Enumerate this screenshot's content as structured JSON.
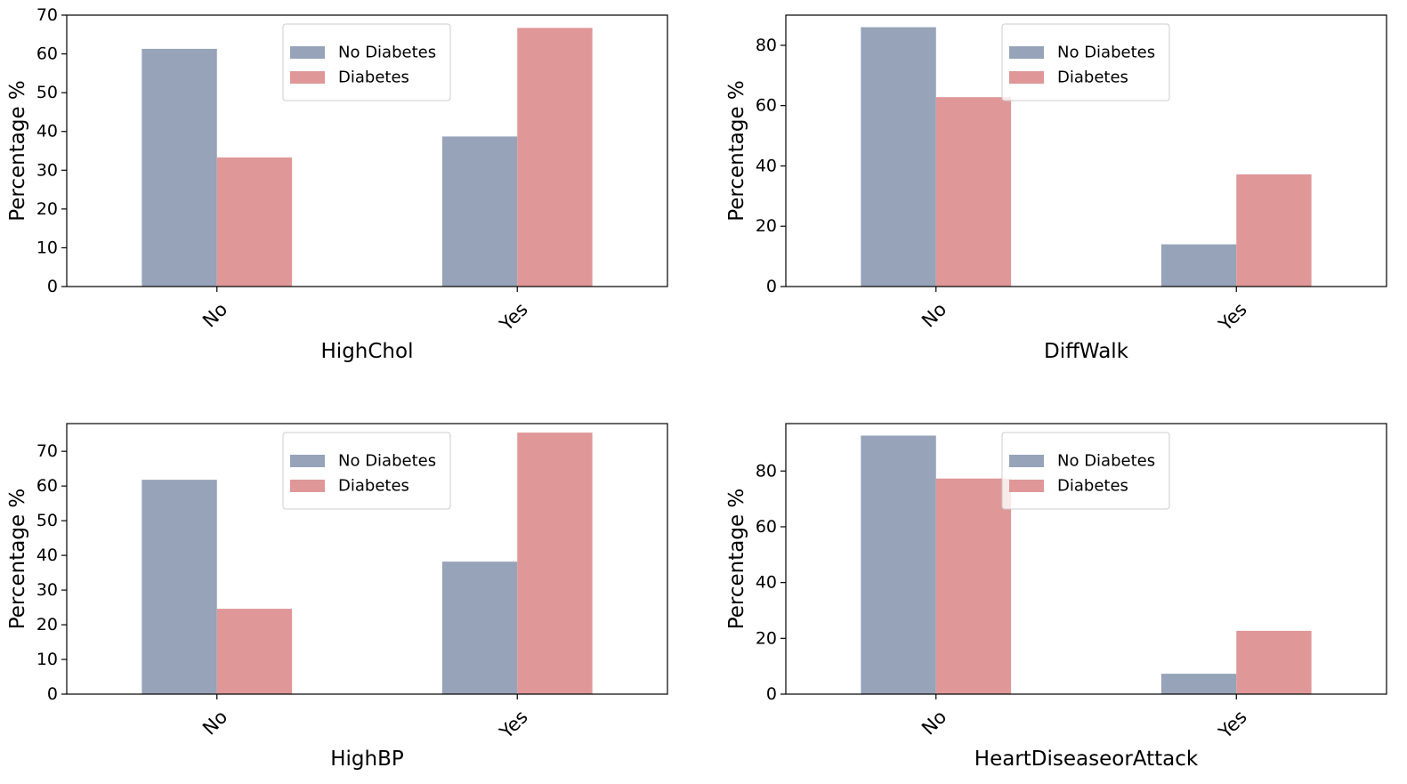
{
  "legend": {
    "position": "upper center",
    "entries": [
      {
        "name": "No Diabetes",
        "color": "#96a3b8"
      },
      {
        "name": "Diabetes",
        "color": "#df9798"
      }
    ]
  },
  "chart_data": [
    {
      "type": "bar",
      "categories": [
        "No",
        "Yes"
      ],
      "xlabel": "HighChol",
      "ylabel": "Percentage %",
      "ylim": [
        0,
        70
      ],
      "yticks": [
        0,
        10,
        20,
        30,
        40,
        50,
        60,
        70
      ],
      "grid": false,
      "series": [
        {
          "name": "No Diabetes",
          "values": [
            61.3,
            38.7
          ],
          "color": "#96a3b8"
        },
        {
          "name": "Diabetes",
          "values": [
            33.3,
            66.7
          ],
          "color": "#df9798"
        }
      ]
    },
    {
      "type": "bar",
      "categories": [
        "No",
        "Yes"
      ],
      "xlabel": "DiffWalk",
      "ylabel": "Percentage %",
      "ylim": [
        0,
        90
      ],
      "yticks": [
        0,
        20,
        40,
        60,
        80
      ],
      "grid": false,
      "series": [
        {
          "name": "No Diabetes",
          "values": [
            86.0,
            14.0
          ],
          "color": "#96a3b8"
        },
        {
          "name": "Diabetes",
          "values": [
            62.8,
            37.2
          ],
          "color": "#df9798"
        }
      ]
    },
    {
      "type": "bar",
      "categories": [
        "No",
        "Yes"
      ],
      "xlabel": "HighBP",
      "ylabel": "Percentage %",
      "ylim": [
        0,
        78
      ],
      "yticks": [
        0,
        10,
        20,
        30,
        40,
        50,
        60,
        70
      ],
      "grid": false,
      "series": [
        {
          "name": "No Diabetes",
          "values": [
            61.8,
            38.2
          ],
          "color": "#96a3b8"
        },
        {
          "name": "Diabetes",
          "values": [
            24.6,
            75.4
          ],
          "color": "#df9798"
        }
      ]
    },
    {
      "type": "bar",
      "categories": [
        "No",
        "Yes"
      ],
      "xlabel": "HeartDiseaseorAttack",
      "ylabel": "Percentage %",
      "ylim": [
        0,
        97
      ],
      "yticks": [
        0,
        20,
        40,
        60,
        80
      ],
      "grid": false,
      "series": [
        {
          "name": "No Diabetes",
          "values": [
            92.7,
            7.3
          ],
          "color": "#96a3b8"
        },
        {
          "name": "Diabetes",
          "values": [
            77.3,
            22.7
          ],
          "color": "#df9798"
        }
      ]
    }
  ]
}
